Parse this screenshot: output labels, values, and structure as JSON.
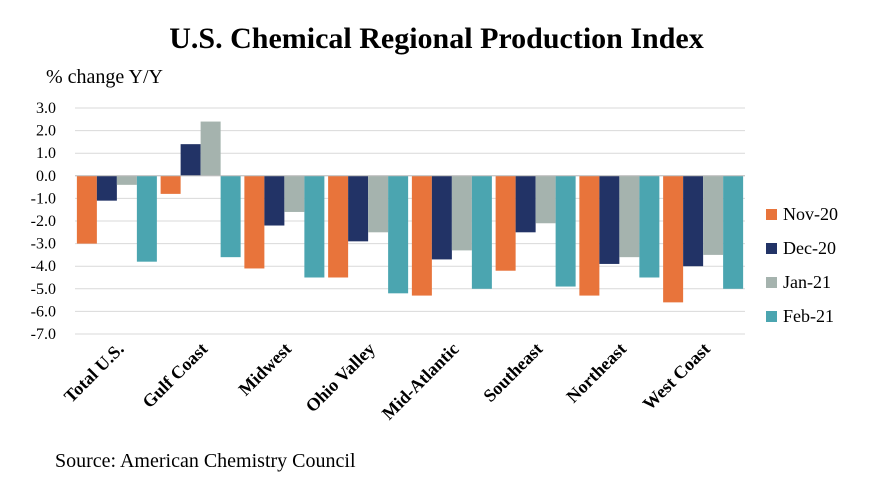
{
  "chart_data": {
    "type": "bar",
    "title": "U.S. Chemical Regional Production Index",
    "ylabel": "% change Y/Y",
    "xlabel": "",
    "source": "Source: American Chemistry Council",
    "ylim": [
      -7.0,
      3.0
    ],
    "yticks": [
      "3.0",
      "2.0",
      "1.0",
      "0.0",
      "-1.0",
      "-2.0",
      "-3.0",
      "-4.0",
      "-5.0",
      "-6.0",
      "-7.0"
    ],
    "ytick_values": [
      3,
      2,
      1,
      0,
      -1,
      -2,
      -3,
      -4,
      -5,
      -6,
      -7
    ],
    "grid": true,
    "legend_position": "right",
    "categories": [
      "Total U.S.",
      "Gulf Coast",
      "Midwest",
      "Ohio Valley",
      "Mid-Atlantic",
      "Southeast",
      "Northeast",
      "West Coast"
    ],
    "series": [
      {
        "name": "Nov-20",
        "color": "#E8743B",
        "values": [
          -3.0,
          -0.8,
          -4.1,
          -4.5,
          -5.3,
          -4.2,
          -5.3,
          -5.6
        ]
      },
      {
        "name": "Dec-20",
        "color": "#223366",
        "values": [
          -1.1,
          1.4,
          -2.2,
          -2.9,
          -3.7,
          -2.5,
          -3.9,
          -4.0
        ]
      },
      {
        "name": "Jan-21",
        "color": "#A5B3AE",
        "values": [
          -0.4,
          2.4,
          -1.6,
          -2.5,
          -3.3,
          -2.1,
          -3.6,
          -3.5
        ]
      },
      {
        "name": "Feb-21",
        "color": "#4BA5B0",
        "values": [
          -3.8,
          -3.6,
          -4.5,
          -5.2,
          -5.0,
          -4.9,
          -4.5,
          -5.0
        ]
      }
    ]
  }
}
